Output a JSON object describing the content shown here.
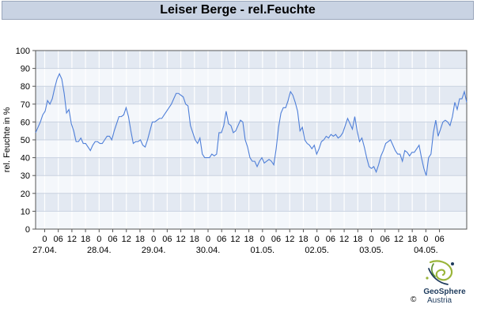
{
  "chart_data": {
    "type": "line",
    "title": "Leiser Berge - rel.Feuchte",
    "ylabel": "rel. Feuchte in %",
    "xlabel": "",
    "ylim": [
      0,
      100
    ],
    "yticks": [
      0,
      10,
      20,
      30,
      40,
      50,
      60,
      70,
      80,
      90,
      100
    ],
    "x_hour_labels": [
      "0",
      "06",
      "12",
      "18",
      "0",
      "06",
      "12",
      "18",
      "0",
      "06",
      "12",
      "18",
      "0",
      "06",
      "12",
      "18",
      "0",
      "06",
      "12",
      "18",
      "0",
      "06",
      "12",
      "18",
      "0",
      "06",
      "12",
      "18",
      "0",
      "06"
    ],
    "date_labels": [
      "27.04.",
      "28.04.",
      "29.04.",
      "30.04.",
      "01.05.",
      "02.05.",
      "03.05.",
      "04.05."
    ],
    "grid": true,
    "line_color": "#4f7fd8",
    "series": [
      {
        "values": [
          54,
          57,
          60,
          64,
          66,
          72,
          70,
          73,
          79,
          84,
          87,
          84,
          76,
          65,
          67,
          59,
          55,
          49,
          49,
          51,
          48,
          48,
          46,
          44,
          47,
          49,
          49,
          48,
          48,
          50,
          52,
          52,
          50,
          55,
          59,
          63,
          63,
          64,
          68,
          63,
          55,
          48,
          49,
          49,
          50,
          47,
          46,
          50,
          55,
          60,
          60,
          61,
          62,
          62,
          64,
          66,
          68,
          70,
          73,
          76,
          76,
          75,
          74,
          70,
          69,
          58,
          54,
          50,
          48,
          51,
          42,
          40,
          40,
          40,
          42,
          41,
          42,
          54,
          54,
          58,
          66,
          59,
          58,
          54,
          55,
          58,
          61,
          60,
          50,
          46,
          40,
          38,
          38,
          35,
          38,
          40,
          37,
          38,
          39,
          38,
          36,
          45,
          57,
          65,
          68,
          68,
          72,
          77,
          75,
          71,
          66,
          55,
          57,
          50,
          48,
          47,
          45,
          47,
          42,
          45,
          49,
          50,
          52,
          51,
          53,
          52,
          53,
          51,
          52,
          54,
          58,
          62,
          59,
          56,
          63,
          55,
          49,
          51,
          46,
          40,
          35,
          34,
          35,
          32,
          36,
          41,
          44,
          48,
          49,
          50,
          47,
          44,
          42,
          42,
          38,
          44,
          43,
          41,
          43,
          43,
          45,
          47,
          40,
          34,
          30,
          40,
          42,
          54,
          61,
          52,
          56,
          60,
          61,
          60,
          58,
          63,
          71,
          67,
          73,
          73,
          77,
          71
        ]
      }
    ]
  },
  "footer": {
    "logo_name": "GeoSphere",
    "logo_sub": "Austria",
    "copyright": "©"
  }
}
